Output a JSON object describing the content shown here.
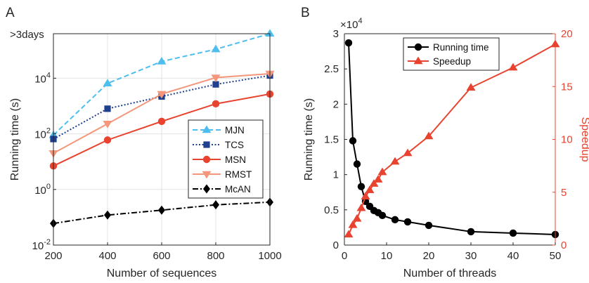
{
  "chart_data": [
    {
      "panel_label": "A",
      "type": "line",
      "xlabel": "Number of sequences",
      "ylabel": "Running time (s)",
      "yscale": "log",
      "xlim": [
        200,
        1000
      ],
      "ylim_log10": [
        -2,
        5.6
      ],
      "x_ticks": [
        "200",
        "400",
        "600",
        "800",
        "1000"
      ],
      "y_ticks": [
        {
          "base": "10",
          "exp": "-2",
          "log": -2
        },
        {
          "base": "10",
          "exp": "0",
          "log": 0
        },
        {
          "base": "10",
          "exp": "2",
          "log": 2
        },
        {
          "base": "10",
          "exp": "4",
          "log": 4
        }
      ],
      "top_tick_label": ">3days",
      "legend_position": "right",
      "grid": true,
      "series": [
        {
          "name": "MJN",
          "color": "#4DBEEE",
          "marker": "triangle-up",
          "dash": "dashed",
          "x": [
            200,
            400,
            600,
            800,
            1000
          ],
          "y": [
            90,
            6500,
            40000,
            110000,
            400000
          ]
        },
        {
          "name": "TCS",
          "color": "#1F3F8F",
          "marker": "square",
          "dash": "dotted",
          "x": [
            200,
            400,
            600,
            800,
            1000
          ],
          "y": [
            65,
            800,
            2200,
            6000,
            12500
          ]
        },
        {
          "name": "MSN",
          "color": "#E8432E",
          "marker": "circle",
          "dash": "solid",
          "x": [
            200,
            400,
            600,
            800,
            1000
          ],
          "y": [
            7,
            60,
            280,
            1200,
            2700
          ]
        },
        {
          "name": "RMST",
          "color": "#F4967A",
          "marker": "triangle-down",
          "dash": "solid",
          "x": [
            200,
            400,
            600,
            800,
            1000
          ],
          "y": [
            20,
            230,
            2700,
            10500,
            14500
          ]
        },
        {
          "name": "McAN",
          "color": "#000000",
          "marker": "diamond",
          "dash": "dashdot",
          "x": [
            200,
            400,
            600,
            800,
            1000
          ],
          "y": [
            0.06,
            0.12,
            0.18,
            0.28,
            0.35
          ]
        }
      ]
    },
    {
      "panel_label": "B",
      "type": "line",
      "xlabel": "Number of threads",
      "ylabel": "Running time (s)",
      "y2label": "Speedup",
      "xlim": [
        0,
        50
      ],
      "ylim": [
        0,
        30000
      ],
      "y2lim": [
        0,
        20
      ],
      "x_ticks": [
        "0",
        "10",
        "20",
        "30",
        "40",
        "50"
      ],
      "y_ticks": [
        "0",
        "0.5",
        "1",
        "1.5",
        "2",
        "2.5",
        "3"
      ],
      "y2_ticks": [
        "0",
        "5",
        "10",
        "15",
        "20"
      ],
      "y_multiplier": {
        "base": "×10",
        "exp": "4"
      },
      "legend_position": "top-right",
      "grid": false,
      "series": [
        {
          "name": "Running time",
          "color": "#000000",
          "marker": "circle",
          "axis": "left",
          "x": [
            1,
            2,
            3,
            4,
            5,
            6,
            7,
            8,
            9,
            12,
            15,
            20,
            30,
            40,
            50
          ],
          "y": [
            28700,
            14800,
            11500,
            8300,
            6200,
            5500,
            4900,
            4600,
            4200,
            3600,
            3300,
            2800,
            1900,
            1700,
            1500
          ]
        },
        {
          "name": "Speedup",
          "color": "#E8432E",
          "marker": "triangle-up",
          "axis": "right",
          "x": [
            1,
            2,
            3,
            4,
            5,
            6,
            7,
            8,
            9,
            12,
            15,
            20,
            30,
            40,
            50
          ],
          "y": [
            1,
            1.9,
            2.5,
            3.5,
            4.6,
            5.2,
            5.8,
            6.2,
            6.9,
            7.9,
            8.7,
            10.3,
            14.9,
            16.8,
            19
          ]
        }
      ]
    }
  ]
}
